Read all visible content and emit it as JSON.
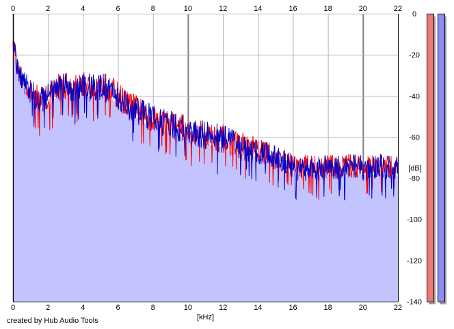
{
  "chart_data": {
    "type": "area",
    "x_ticks": [
      0,
      2,
      4,
      6,
      8,
      10,
      12,
      14,
      16,
      18,
      20,
      22
    ],
    "y_ticks": [
      0,
      -20,
      -40,
      -60,
      -80,
      -100,
      -120,
      -140
    ],
    "x_tick_labels": [
      "0",
      "2",
      "4",
      "6",
      "8",
      "10",
      "12",
      "14",
      "16",
      "18",
      "20",
      "22"
    ],
    "y_tick_labels": [
      "0",
      "-20",
      "-40",
      "-60",
      "-80",
      "-100",
      "-120",
      "-140"
    ],
    "xlabel": "[kHz]",
    "ylabel": "[dB]",
    "xlim": [
      0,
      22
    ],
    "ylim": [
      -140,
      0
    ],
    "grid": true,
    "x_axis_position": "top and bottom",
    "y_axis_position": "right",
    "series": [
      {
        "color": "#ff0000",
        "x": [
          0,
          0.1,
          0.2,
          0.4,
          0.7,
          1.0,
          1.5,
          2.0,
          2.5,
          3.0,
          3.5,
          4.0,
          4.5,
          5.0,
          5.5,
          6.0,
          6.5,
          7.0,
          7.5,
          8.0,
          8.5,
          9.0,
          9.5,
          10.0,
          10.5,
          11.0,
          11.5,
          12.0,
          12.5,
          13.0,
          13.5,
          14.0,
          14.5,
          15.0,
          15.5,
          16.0,
          16.5,
          17.0,
          17.5,
          18.0,
          18.5,
          19.0,
          19.5,
          20.0,
          20.5,
          21.0,
          21.5,
          22.0
        ],
        "y": [
          -12,
          -16,
          -25,
          -30,
          -34,
          -38,
          -42,
          -41,
          -36,
          -35,
          -37,
          -35,
          -36,
          -35,
          -36,
          -40,
          -44,
          -46,
          -49,
          -51,
          -52,
          -54,
          -55,
          -57,
          -58,
          -59,
          -60,
          -61,
          -63,
          -64,
          -65,
          -66,
          -68,
          -70,
          -72,
          -74,
          -75,
          -74,
          -75,
          -74,
          -75,
          -74,
          -74,
          -75,
          -75,
          -74,
          -75,
          -75
        ],
        "spread": [
          3,
          4,
          5,
          5,
          6,
          6,
          7,
          7,
          7,
          7,
          7,
          7,
          7,
          7,
          7,
          7,
          7,
          7,
          7,
          7,
          7,
          7,
          7,
          7,
          7,
          7,
          7,
          7,
          7,
          7,
          6,
          6,
          6,
          6,
          6,
          6,
          6,
          6,
          6,
          6,
          6,
          6,
          6,
          6,
          6,
          6,
          6,
          6
        ]
      },
      {
        "color": "#0000cc",
        "x": [
          0,
          0.1,
          0.2,
          0.4,
          0.7,
          1.0,
          1.5,
          2.0,
          2.5,
          3.0,
          3.5,
          4.0,
          4.5,
          5.0,
          5.5,
          6.0,
          6.5,
          7.0,
          7.5,
          8.0,
          8.5,
          9.0,
          9.5,
          10.0,
          10.5,
          11.0,
          11.5,
          12.0,
          12.5,
          13.0,
          13.5,
          14.0,
          14.5,
          15.0,
          15.5,
          16.0,
          16.5,
          17.0,
          17.5,
          18.0,
          18.5,
          19.0,
          19.5,
          20.0,
          20.5,
          21.0,
          21.5,
          22.0
        ],
        "y": [
          -10,
          -15,
          -24,
          -30,
          -34,
          -38,
          -42,
          -40,
          -37,
          -35,
          -36,
          -35,
          -36,
          -35,
          -37,
          -41,
          -44,
          -47,
          -49,
          -51,
          -53,
          -54,
          -56,
          -57,
          -58,
          -59,
          -60,
          -61,
          -63,
          -64,
          -66,
          -67,
          -68,
          -70,
          -72,
          -74,
          -76,
          -75,
          -75,
          -74,
          -75,
          -75,
          -74,
          -75,
          -76,
          -74,
          -75,
          -75
        ],
        "spread": [
          3,
          4,
          5,
          5,
          6,
          6,
          7,
          7,
          7,
          7,
          7,
          7,
          7,
          7,
          7,
          7,
          7,
          7,
          7,
          7,
          7,
          7,
          7,
          7,
          7,
          7,
          7,
          7,
          7,
          7,
          6,
          6,
          6,
          6,
          6,
          6,
          6,
          6,
          6,
          6,
          6,
          6,
          6,
          6,
          6,
          6,
          6,
          6
        ]
      }
    ],
    "fill_color": "#c3c3ff",
    "level_meters": [
      {
        "color": "#f07a7a",
        "level": 1.0
      },
      {
        "color": "#8c8cf4",
        "level": 1.0
      }
    ]
  },
  "footer": {
    "credit": "created by Hub Audio Tools"
  }
}
